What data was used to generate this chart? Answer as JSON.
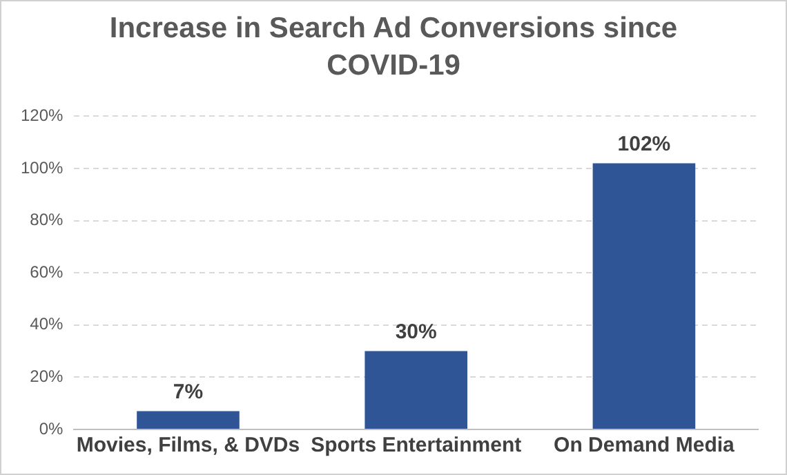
{
  "chart_data": {
    "type": "bar",
    "title": "Increase in Search Ad Conversions since COVID-19",
    "categories": [
      "Movies, Films, & DVDs",
      "Sports Entertainment",
      "On Demand Media"
    ],
    "values": [
      7,
      30,
      102
    ],
    "color": "#2f5597",
    "value_labels": [
      "7%",
      "30%",
      "102%"
    ],
    "ylim": [
      0,
      120
    ],
    "yticks": [
      {
        "value": 0,
        "label": "0%"
      },
      {
        "value": 20,
        "label": "20%"
      },
      {
        "value": 40,
        "label": "40%"
      },
      {
        "value": 60,
        "label": "60%"
      },
      {
        "value": 80,
        "label": "80%"
      },
      {
        "value": 100,
        "label": "100%"
      },
      {
        "value": 120,
        "label": "120%"
      }
    ],
    "grid": "y",
    "legend": false
  }
}
